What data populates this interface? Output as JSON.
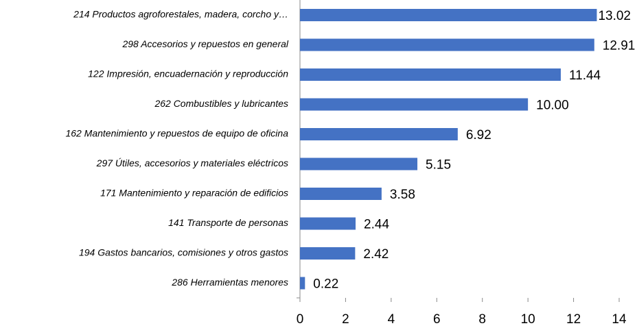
{
  "chart_data": {
    "type": "barh",
    "categories": [
      "214 Productos agroforestales, madera, corcho y…",
      "298 Accesorios y repuestos en general",
      "122 Impresión, encuadernación y reproducción",
      "262 Combustibles y lubricantes",
      "162 Mantenimiento y repuestos de  equipo de oficina",
      "297 Útiles, accesorios y materiales eléctricos",
      "171 Mantenimiento y reparación de edificios",
      "141 Transporte de personas",
      "194 Gastos bancarios, comisiones y otros gastos",
      "286 Herramientas menores"
    ],
    "values": [
      13.02,
      12.91,
      11.44,
      10.0,
      6.92,
      5.15,
      3.58,
      2.44,
      2.42,
      0.22
    ],
    "value_labels": [
      "13.02",
      "12.91",
      "11.44",
      "10.00",
      "6.92",
      "5.15",
      "3.58",
      "2.44",
      "2.42",
      "0.22"
    ],
    "color": "#4472c4",
    "xlim": [
      0,
      14
    ],
    "xticks": [
      0,
      2,
      4,
      6,
      8,
      10,
      12,
      14
    ],
    "grid": false
  }
}
